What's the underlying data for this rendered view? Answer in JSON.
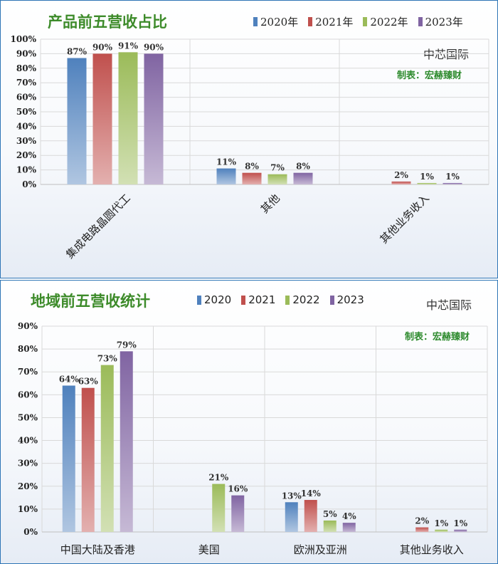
{
  "charts": [
    {
      "title": "产品前五营收占比",
      "company": "中芯国际",
      "credit": "制表：宏赫臻财",
      "legend": [
        "2020年",
        "2021年",
        "2022年",
        "2023年"
      ]
    },
    {
      "title": "地域前五营收统计",
      "company": "中芯国际",
      "credit": "制表：宏赫臻财",
      "legend": [
        "2020",
        "2021",
        "2022",
        "2023"
      ]
    }
  ],
  "colors": {
    "s2020": "#4f81bd",
    "s2021": "#c0504d",
    "s2022": "#9bbb59",
    "s2023": "#8064a2"
  },
  "chart_data": [
    {
      "type": "bar",
      "title": "产品前五营收占比",
      "categories": [
        "集成电路晶圆代工",
        "其他",
        "其他业务收入"
      ],
      "series": [
        {
          "name": "2020年",
          "values": [
            87,
            11,
            null
          ],
          "labels": [
            "87%",
            "11%",
            ""
          ]
        },
        {
          "name": "2021年",
          "values": [
            90,
            8,
            2
          ],
          "labels": [
            "90%",
            "8%",
            "2%"
          ]
        },
        {
          "name": "2022年",
          "values": [
            91,
            7,
            1
          ],
          "labels": [
            "91%",
            "7%",
            "1%"
          ]
        },
        {
          "name": "2023年",
          "values": [
            90,
            8,
            1
          ],
          "labels": [
            "90%",
            "8%",
            "1%"
          ]
        }
      ],
      "ylim": [
        0,
        100
      ],
      "yticks": [
        "0%",
        "10%",
        "20%",
        "30%",
        "40%",
        "50%",
        "60%",
        "70%",
        "80%",
        "90%",
        "100%"
      ],
      "grid": true,
      "legend_position": "top-right"
    },
    {
      "type": "bar",
      "title": "地域前五营收统计",
      "categories": [
        "中国大陆及香港",
        "美国",
        "欧洲及亚洲",
        "其他业务收入"
      ],
      "series": [
        {
          "name": "2020",
          "values": [
            64,
            null,
            13,
            null
          ],
          "labels": [
            "64%",
            "",
            "13%",
            ""
          ]
        },
        {
          "name": "2021",
          "values": [
            63,
            null,
            14,
            2
          ],
          "labels": [
            "63%",
            "",
            "14%",
            "2%"
          ]
        },
        {
          "name": "2022",
          "values": [
            73,
            21,
            5,
            1
          ],
          "labels": [
            "73%",
            "21%",
            "5%",
            "1%"
          ]
        },
        {
          "name": "2023",
          "values": [
            79,
            16,
            4,
            1
          ],
          "labels": [
            "79%",
            "16%",
            "4%",
            "1%"
          ]
        }
      ],
      "ylim": [
        0,
        90
      ],
      "yticks": [
        "0%",
        "10%",
        "20%",
        "30%",
        "40%",
        "50%",
        "60%",
        "70%",
        "80%",
        "90%"
      ],
      "grid": true,
      "legend_position": "top-center"
    }
  ]
}
